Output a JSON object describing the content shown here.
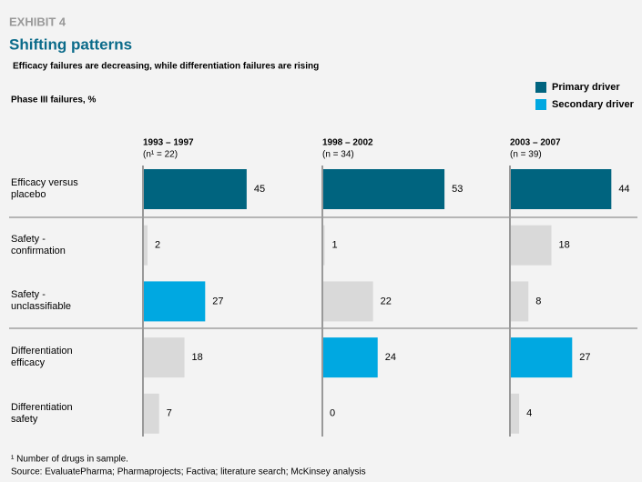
{
  "chart_data": {
    "type": "bar",
    "exhibit": "EXHIBIT 4",
    "title": "Shifting patterns",
    "subtitle": "Efficacy failures are decreasing, while differentiation failures are rising",
    "axis_label": "Phase III failures, %",
    "legend": [
      {
        "name": "Primary driver",
        "color": "#00647f"
      },
      {
        "name": "Secondary driver",
        "color": "#00a8e1"
      }
    ],
    "categories": [
      "Efficacy versus\nplacebo",
      "Safety -\nconfirmation",
      "Safety -\nunclassifiable",
      "Differentiation\nefficacy",
      "Differentiation\nsafety"
    ],
    "panels": [
      {
        "name": "1993 – 1997",
        "n_label": "(n¹ = 22)",
        "values": [
          45,
          2,
          27,
          18,
          7
        ],
        "colors": [
          "#00647f",
          "#d9d9d9",
          "#00a8e1",
          "#d9d9d9",
          "#d9d9d9"
        ]
      },
      {
        "name": "1998 – 2002",
        "n_label": "(n = 34)",
        "values": [
          53,
          1,
          22,
          24,
          0
        ],
        "colors": [
          "#00647f",
          "#d9d9d9",
          "#d9d9d9",
          "#00a8e1",
          "#d9d9d9"
        ]
      },
      {
        "name": "2003 – 2007",
        "n_label": "(n = 39)",
        "values": [
          44,
          18,
          8,
          27,
          4
        ],
        "colors": [
          "#00647f",
          "#d9d9d9",
          "#d9d9d9",
          "#00a8e1",
          "#d9d9d9"
        ]
      }
    ],
    "footnote": "¹ Number of drugs in sample.",
    "source": "Source: EvaluatePharma; Pharmaprojects; Factiva; literature search; McKinsey analysis"
  }
}
